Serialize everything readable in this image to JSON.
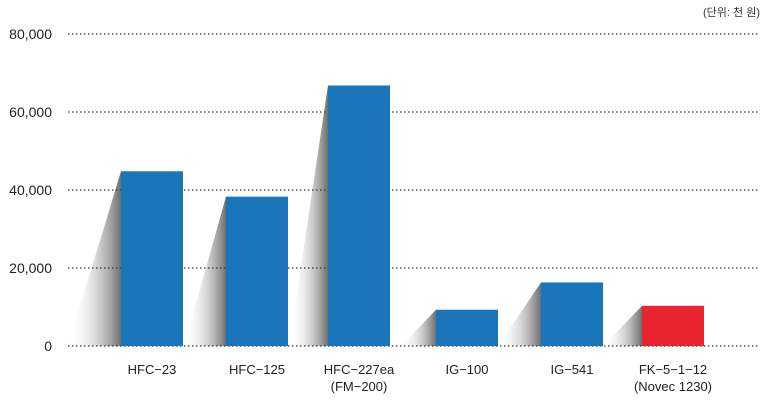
{
  "unit_note": "(단위: 천 원)",
  "chart_data": {
    "type": "bar",
    "title": "",
    "xlabel": "",
    "ylabel": "",
    "ylim": [
      0,
      80000
    ],
    "y_ticks": [
      0,
      20000,
      40000,
      60000,
      80000
    ],
    "y_tick_labels": [
      "0",
      "20,000",
      "40,000",
      "60,000",
      "80,000"
    ],
    "grid": "horizontal dotted",
    "categories": [
      [
        "HFC−23"
      ],
      [
        "HFC−125"
      ],
      [
        "HFC−227ea",
        "(FM−200)"
      ],
      [
        "IG−100"
      ],
      [
        "IG−541"
      ],
      [
        "FK−5−1−12",
        "(Novec 1230)"
      ]
    ],
    "values": [
      44800,
      38300,
      66800,
      9300,
      16300,
      10300
    ],
    "colors": [
      "#1a75bb",
      "#1a75bb",
      "#1a75bb",
      "#1a75bb",
      "#1a75bb",
      "#e8252f"
    ]
  }
}
